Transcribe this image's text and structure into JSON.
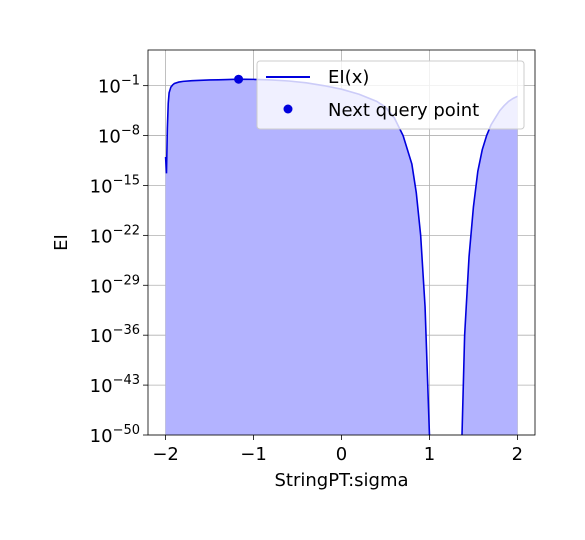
{
  "chart_data": {
    "type": "line",
    "title": "",
    "xlabel": "StringPT:sigma",
    "ylabel": "EI",
    "xlim": [
      -2.2,
      2.2
    ],
    "ylim_log10": [
      -50,
      4
    ],
    "y_scale": "log",
    "grid": true,
    "legend_position": "upper-right",
    "x_ticks": [
      -2,
      -1,
      0,
      1,
      2
    ],
    "x_tick_labels": [
      "−2",
      "−1",
      "0",
      "1",
      "2"
    ],
    "y_ticks_log10": [
      -1,
      -8,
      -15,
      -22,
      -29,
      -36,
      -43,
      -50
    ],
    "y_tick_labels": [
      {
        "base": "10",
        "exp": "−1"
      },
      {
        "base": "10",
        "exp": "−8"
      },
      {
        "base": "10",
        "exp": "−15"
      },
      {
        "base": "10",
        "exp": "−22"
      },
      {
        "base": "10",
        "exp": "−29"
      },
      {
        "base": "10",
        "exp": "−36"
      },
      {
        "base": "10",
        "exp": "−43"
      },
      {
        "base": "10",
        "exp": "−50"
      }
    ],
    "series": [
      {
        "name": "EI(x)",
        "color": "#0000dd",
        "fill_color": "#b3b3ff",
        "segments": [
          {
            "x": [
              -2.0,
              -1.99,
              -1.98,
              -1.97,
              -1.96,
              -1.94,
              -1.92,
              -1.9,
              -1.85,
              -1.8,
              -1.7,
              -1.6,
              -1.5,
              -1.4,
              -1.3,
              -1.17,
              -1.0,
              -0.8,
              -0.6,
              -0.4,
              -0.2,
              0.0,
              0.2,
              0.4,
              0.5,
              0.6,
              0.7,
              0.8,
              0.85,
              0.9,
              0.95,
              1.0
            ],
            "log10_y": [
              -11,
              -13.3,
              -7,
              -3.5,
              -2,
              -1.2,
              -0.9,
              -0.7,
              -0.5,
              -0.4,
              -0.3,
              -0.25,
              -0.2,
              -0.18,
              -0.15,
              -0.1,
              -0.12,
              -0.2,
              -0.35,
              -0.6,
              -1.0,
              -1.5,
              -2.2,
              -3.2,
              -4,
              -5.5,
              -8,
              -12,
              -16,
              -22,
              -32,
              -50
            ]
          },
          {
            "x": [
              1.37,
              1.4,
              1.45,
              1.5,
              1.55,
              1.6,
              1.65,
              1.7,
              1.75,
              1.8,
              1.85,
              1.9,
              1.95,
              2.0
            ],
            "log10_y": [
              -50,
              -36,
              -25,
              -18,
              -13,
              -10,
              -8,
              -6.5,
              -5.5,
              -4.5,
              -3.8,
              -3.2,
              -2.8,
              -2.5
            ]
          }
        ]
      },
      {
        "name": "Next query point",
        "type": "scatter",
        "color": "#0000dd",
        "x": [
          -1.17
        ],
        "log10_y": [
          -0.1
        ]
      }
    ]
  }
}
